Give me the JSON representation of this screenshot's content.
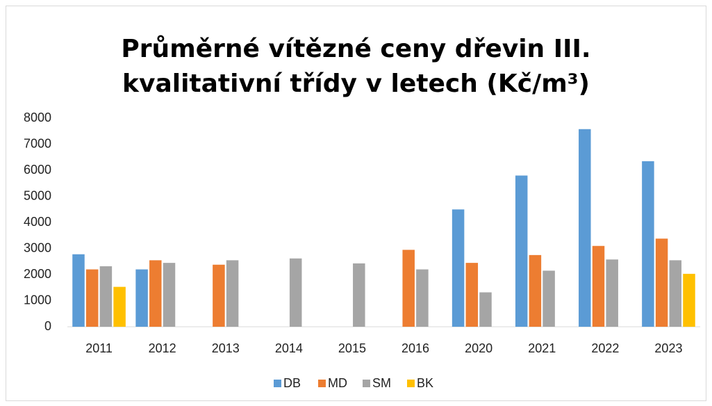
{
  "chart_data": {
    "type": "bar",
    "title": "Průměrné vítězné ceny dřevin III. kvalitativní třídy v letech (Kč/m³)",
    "categories": [
      "2011",
      "2012",
      "2013",
      "2014",
      "2015",
      "2016",
      "2020",
      "2021",
      "2022",
      "2023"
    ],
    "series": [
      {
        "name": "DB",
        "color": "#5b9bd5",
        "values": [
          2780,
          2200,
          null,
          null,
          null,
          null,
          4500,
          5800,
          7580,
          6350
        ]
      },
      {
        "name": "MD",
        "color": "#ed7d31",
        "values": [
          2200,
          2550,
          2380,
          null,
          null,
          2950,
          2450,
          2750,
          3100,
          3380
        ]
      },
      {
        "name": "SM",
        "color": "#a5a5a5",
        "values": [
          2320,
          2450,
          2550,
          2620,
          2430,
          2200,
          1320,
          2150,
          2580,
          2550
        ]
      },
      {
        "name": "BK",
        "color": "#ffc000",
        "values": [
          1530,
          null,
          null,
          null,
          null,
          null,
          null,
          null,
          null,
          2030
        ]
      }
    ],
    "ylim": [
      0,
      8000
    ],
    "yticks": [
      0,
      1000,
      2000,
      3000,
      4000,
      5000,
      6000,
      7000,
      8000
    ],
    "grid": false,
    "legend": "bottom"
  }
}
